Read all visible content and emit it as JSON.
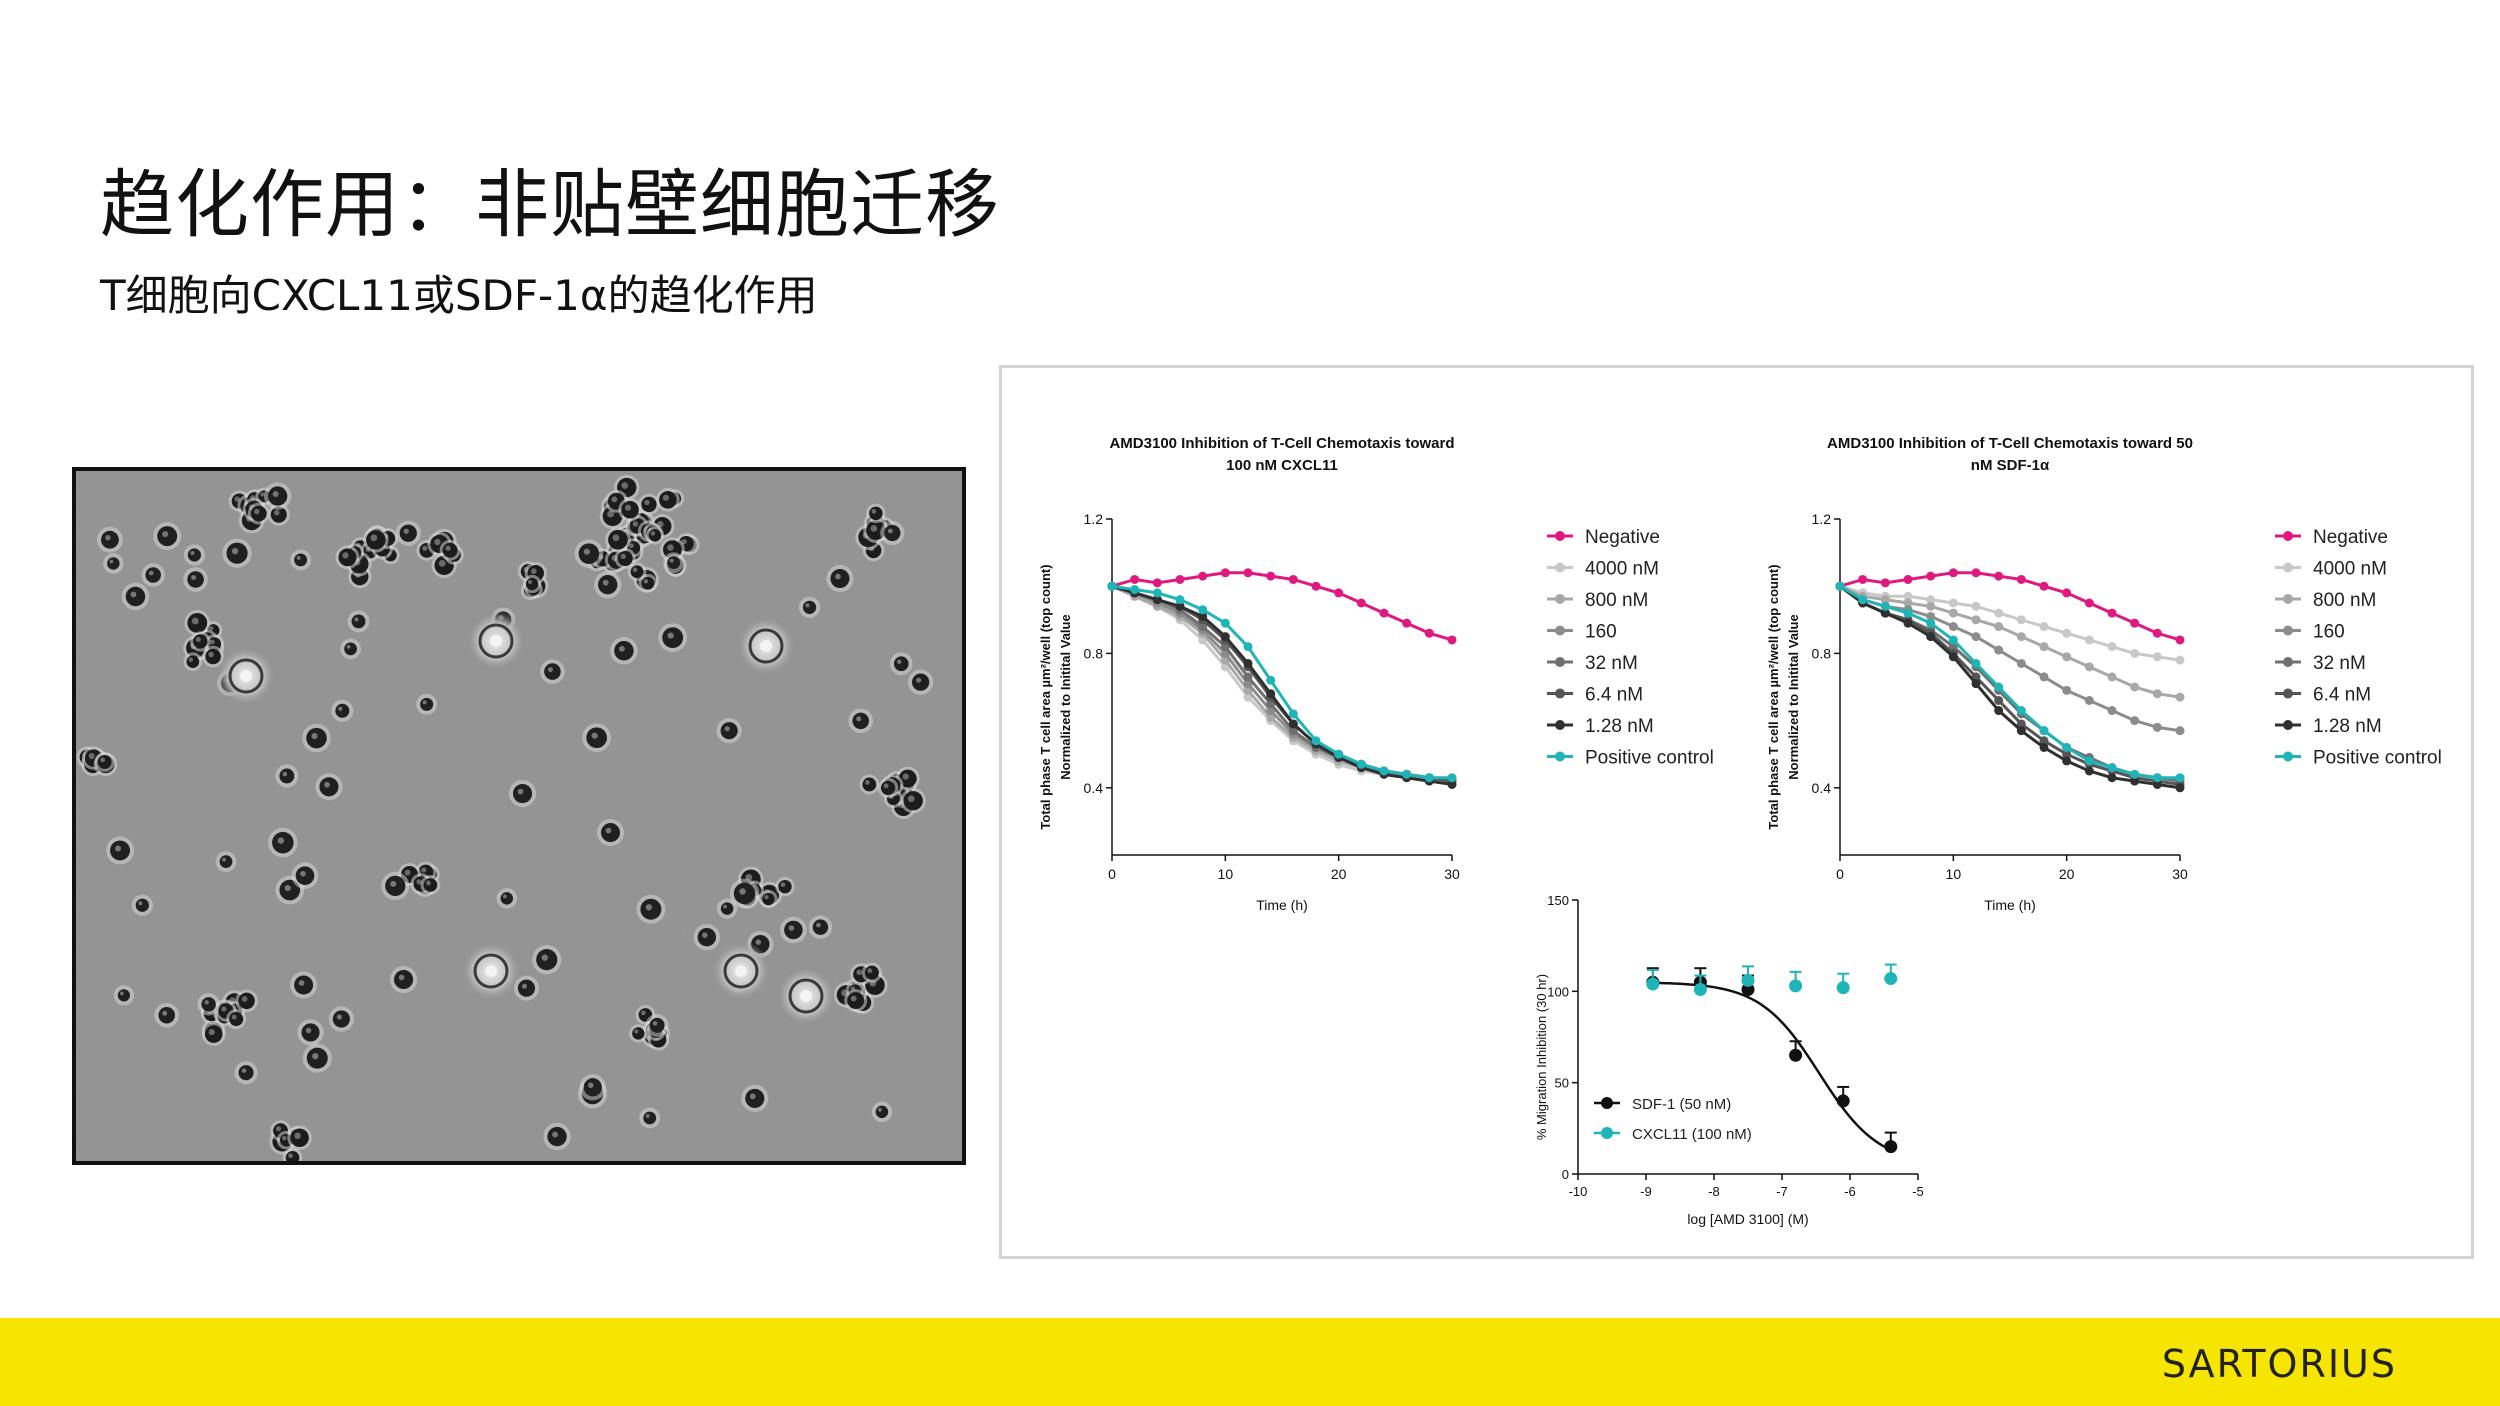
{
  "slide": {
    "title": "趋化作用：非贴壁细胞迁移",
    "subtitle": "T细胞向CXCL11或SDF-1α的趋化作用"
  },
  "footer": {
    "logo_text": "SARTORIUS",
    "bar_color": "#f6e500"
  },
  "colors": {
    "negative": "#e0197e",
    "positive": "#1fb5b8",
    "black": "#111111"
  },
  "chart_data": [
    {
      "type": "line",
      "title_lines": [
        "AMD3100 Inhibition of T-Cell Chemotaxis toward",
        "100 nM CXCL11"
      ],
      "ylabel_lines": [
        "Total phase T cell area  µm²/well (top count)",
        "Normalized to Initital Value"
      ],
      "xlabel": "Time (h)",
      "xlim": [
        0,
        30
      ],
      "ylim": [
        0.2,
        1.2
      ],
      "xticks": [
        0,
        10,
        20,
        30
      ],
      "yticks": [
        0.4,
        0.8,
        1.2
      ],
      "legend_position": "right",
      "x": [
        0,
        2,
        4,
        6,
        8,
        10,
        12,
        14,
        16,
        18,
        20,
        22,
        24,
        26,
        28,
        30
      ],
      "series": [
        {
          "name": "Negative",
          "color": "#e0197e",
          "values": [
            1.0,
            1.02,
            1.01,
            1.02,
            1.03,
            1.04,
            1.04,
            1.03,
            1.02,
            1.0,
            0.98,
            0.95,
            0.92,
            0.89,
            0.86,
            0.84
          ]
        },
        {
          "name": "4000 nM",
          "color": "#c8c8c8",
          "values": [
            1.0,
            0.97,
            0.94,
            0.9,
            0.84,
            0.76,
            0.67,
            0.6,
            0.54,
            0.5,
            0.47,
            0.45,
            0.44,
            0.43,
            0.42,
            0.42
          ]
        },
        {
          "name": "800 nM",
          "color": "#a8a8a8",
          "values": [
            1.0,
            0.97,
            0.94,
            0.91,
            0.86,
            0.78,
            0.69,
            0.61,
            0.55,
            0.51,
            0.48,
            0.46,
            0.45,
            0.44,
            0.43,
            0.42
          ]
        },
        {
          "name": "160",
          "color": "#8c8c8c",
          "values": [
            1.0,
            0.98,
            0.95,
            0.92,
            0.87,
            0.8,
            0.71,
            0.63,
            0.56,
            0.52,
            0.49,
            0.47,
            0.45,
            0.44,
            0.43,
            0.42
          ]
        },
        {
          "name": "32 nM",
          "color": "#707070",
          "values": [
            1.0,
            0.98,
            0.96,
            0.93,
            0.88,
            0.82,
            0.73,
            0.65,
            0.57,
            0.52,
            0.49,
            0.47,
            0.45,
            0.44,
            0.43,
            0.42
          ]
        },
        {
          "name": "6.4 nM",
          "color": "#555555",
          "values": [
            1.0,
            0.98,
            0.96,
            0.94,
            0.9,
            0.84,
            0.76,
            0.67,
            0.59,
            0.53,
            0.5,
            0.47,
            0.45,
            0.44,
            0.43,
            0.42
          ]
        },
        {
          "name": "1.28 nM",
          "color": "#303030",
          "values": [
            1.0,
            0.98,
            0.96,
            0.94,
            0.91,
            0.85,
            0.77,
            0.68,
            0.59,
            0.53,
            0.49,
            0.46,
            0.44,
            0.43,
            0.42,
            0.41
          ]
        },
        {
          "name": "Positive control",
          "color": "#1fb5b8",
          "values": [
            1.0,
            0.99,
            0.98,
            0.96,
            0.93,
            0.89,
            0.82,
            0.72,
            0.62,
            0.54,
            0.5,
            0.47,
            0.45,
            0.44,
            0.43,
            0.43
          ]
        }
      ]
    },
    {
      "type": "line",
      "title_lines": [
        "AMD3100 Inhibition of T-Cell Chemotaxis toward 50",
        "nM SDF-1α"
      ],
      "ylabel_lines": [
        "Total phase T cell area  µm²/well (top count)",
        "Normalized to Initital Value"
      ],
      "xlabel": "Time (h)",
      "xlim": [
        0,
        30
      ],
      "ylim": [
        0.2,
        1.2
      ],
      "xticks": [
        0,
        10,
        20,
        30
      ],
      "yticks": [
        0.4,
        0.8,
        1.2
      ],
      "legend_position": "right",
      "x": [
        0,
        2,
        4,
        6,
        8,
        10,
        12,
        14,
        16,
        18,
        20,
        22,
        24,
        26,
        28,
        30
      ],
      "series": [
        {
          "name": "Negative",
          "color": "#e0197e",
          "values": [
            1.0,
            1.02,
            1.01,
            1.02,
            1.03,
            1.04,
            1.04,
            1.03,
            1.02,
            1.0,
            0.98,
            0.95,
            0.92,
            0.89,
            0.86,
            0.84
          ]
        },
        {
          "name": "4000 nM",
          "color": "#c8c8c8",
          "values": [
            1.0,
            0.98,
            0.97,
            0.97,
            0.96,
            0.95,
            0.94,
            0.92,
            0.9,
            0.88,
            0.86,
            0.84,
            0.82,
            0.8,
            0.79,
            0.78
          ]
        },
        {
          "name": "800 nM",
          "color": "#a8a8a8",
          "values": [
            1.0,
            0.97,
            0.96,
            0.95,
            0.94,
            0.92,
            0.9,
            0.88,
            0.85,
            0.82,
            0.79,
            0.76,
            0.73,
            0.7,
            0.68,
            0.67
          ]
        },
        {
          "name": "160",
          "color": "#8c8c8c",
          "values": [
            1.0,
            0.96,
            0.94,
            0.93,
            0.91,
            0.88,
            0.85,
            0.81,
            0.77,
            0.73,
            0.69,
            0.66,
            0.63,
            0.6,
            0.58,
            0.57
          ]
        },
        {
          "name": "32 nM",
          "color": "#707070",
          "values": [
            1.0,
            0.95,
            0.92,
            0.9,
            0.87,
            0.82,
            0.76,
            0.69,
            0.62,
            0.57,
            0.52,
            0.49,
            0.46,
            0.44,
            0.43,
            0.42
          ]
        },
        {
          "name": "6.4 nM",
          "color": "#555555",
          "values": [
            1.0,
            0.95,
            0.92,
            0.9,
            0.86,
            0.8,
            0.73,
            0.66,
            0.59,
            0.54,
            0.5,
            0.47,
            0.45,
            0.43,
            0.42,
            0.41
          ]
        },
        {
          "name": "1.28 nM",
          "color": "#303030",
          "values": [
            1.0,
            0.95,
            0.92,
            0.89,
            0.85,
            0.79,
            0.71,
            0.63,
            0.57,
            0.52,
            0.48,
            0.45,
            0.43,
            0.42,
            0.41,
            0.4
          ]
        },
        {
          "name": "Positive control",
          "color": "#1fb5b8",
          "values": [
            1.0,
            0.96,
            0.94,
            0.92,
            0.89,
            0.84,
            0.77,
            0.7,
            0.63,
            0.57,
            0.52,
            0.48,
            0.46,
            0.44,
            0.43,
            0.43
          ]
        }
      ]
    },
    {
      "type": "scatter",
      "ylabel": "% Migration Inhibition (30 hr)",
      "xlabel": "log [AMD 3100] (M)",
      "xlim": [
        -10,
        -5
      ],
      "ylim": [
        0,
        150
      ],
      "xticks": [
        -10,
        -9,
        -8,
        -7,
        -6,
        -5
      ],
      "yticks": [
        0,
        50,
        100,
        150
      ],
      "legend_position": "bottom-left",
      "series": [
        {
          "name": "SDF-1 (50 nM)",
          "color": "#111111",
          "x": [
            -8.9,
            -8.2,
            -7.5,
            -6.8,
            -6.1,
            -5.4
          ],
          "values": [
            105,
            105,
            101,
            65,
            40,
            15
          ],
          "fit": {
            "top": 105,
            "bottom": 5,
            "log_ec50": -6.45,
            "hill": 1.0
          }
        },
        {
          "name": "CXCL11 (100 nM)",
          "color": "#1fb5b8",
          "x": [
            -8.9,
            -8.2,
            -7.5,
            -6.8,
            -6.1,
            -5.4
          ],
          "values": [
            104,
            101,
            106,
            103,
            102,
            107
          ]
        }
      ]
    }
  ]
}
